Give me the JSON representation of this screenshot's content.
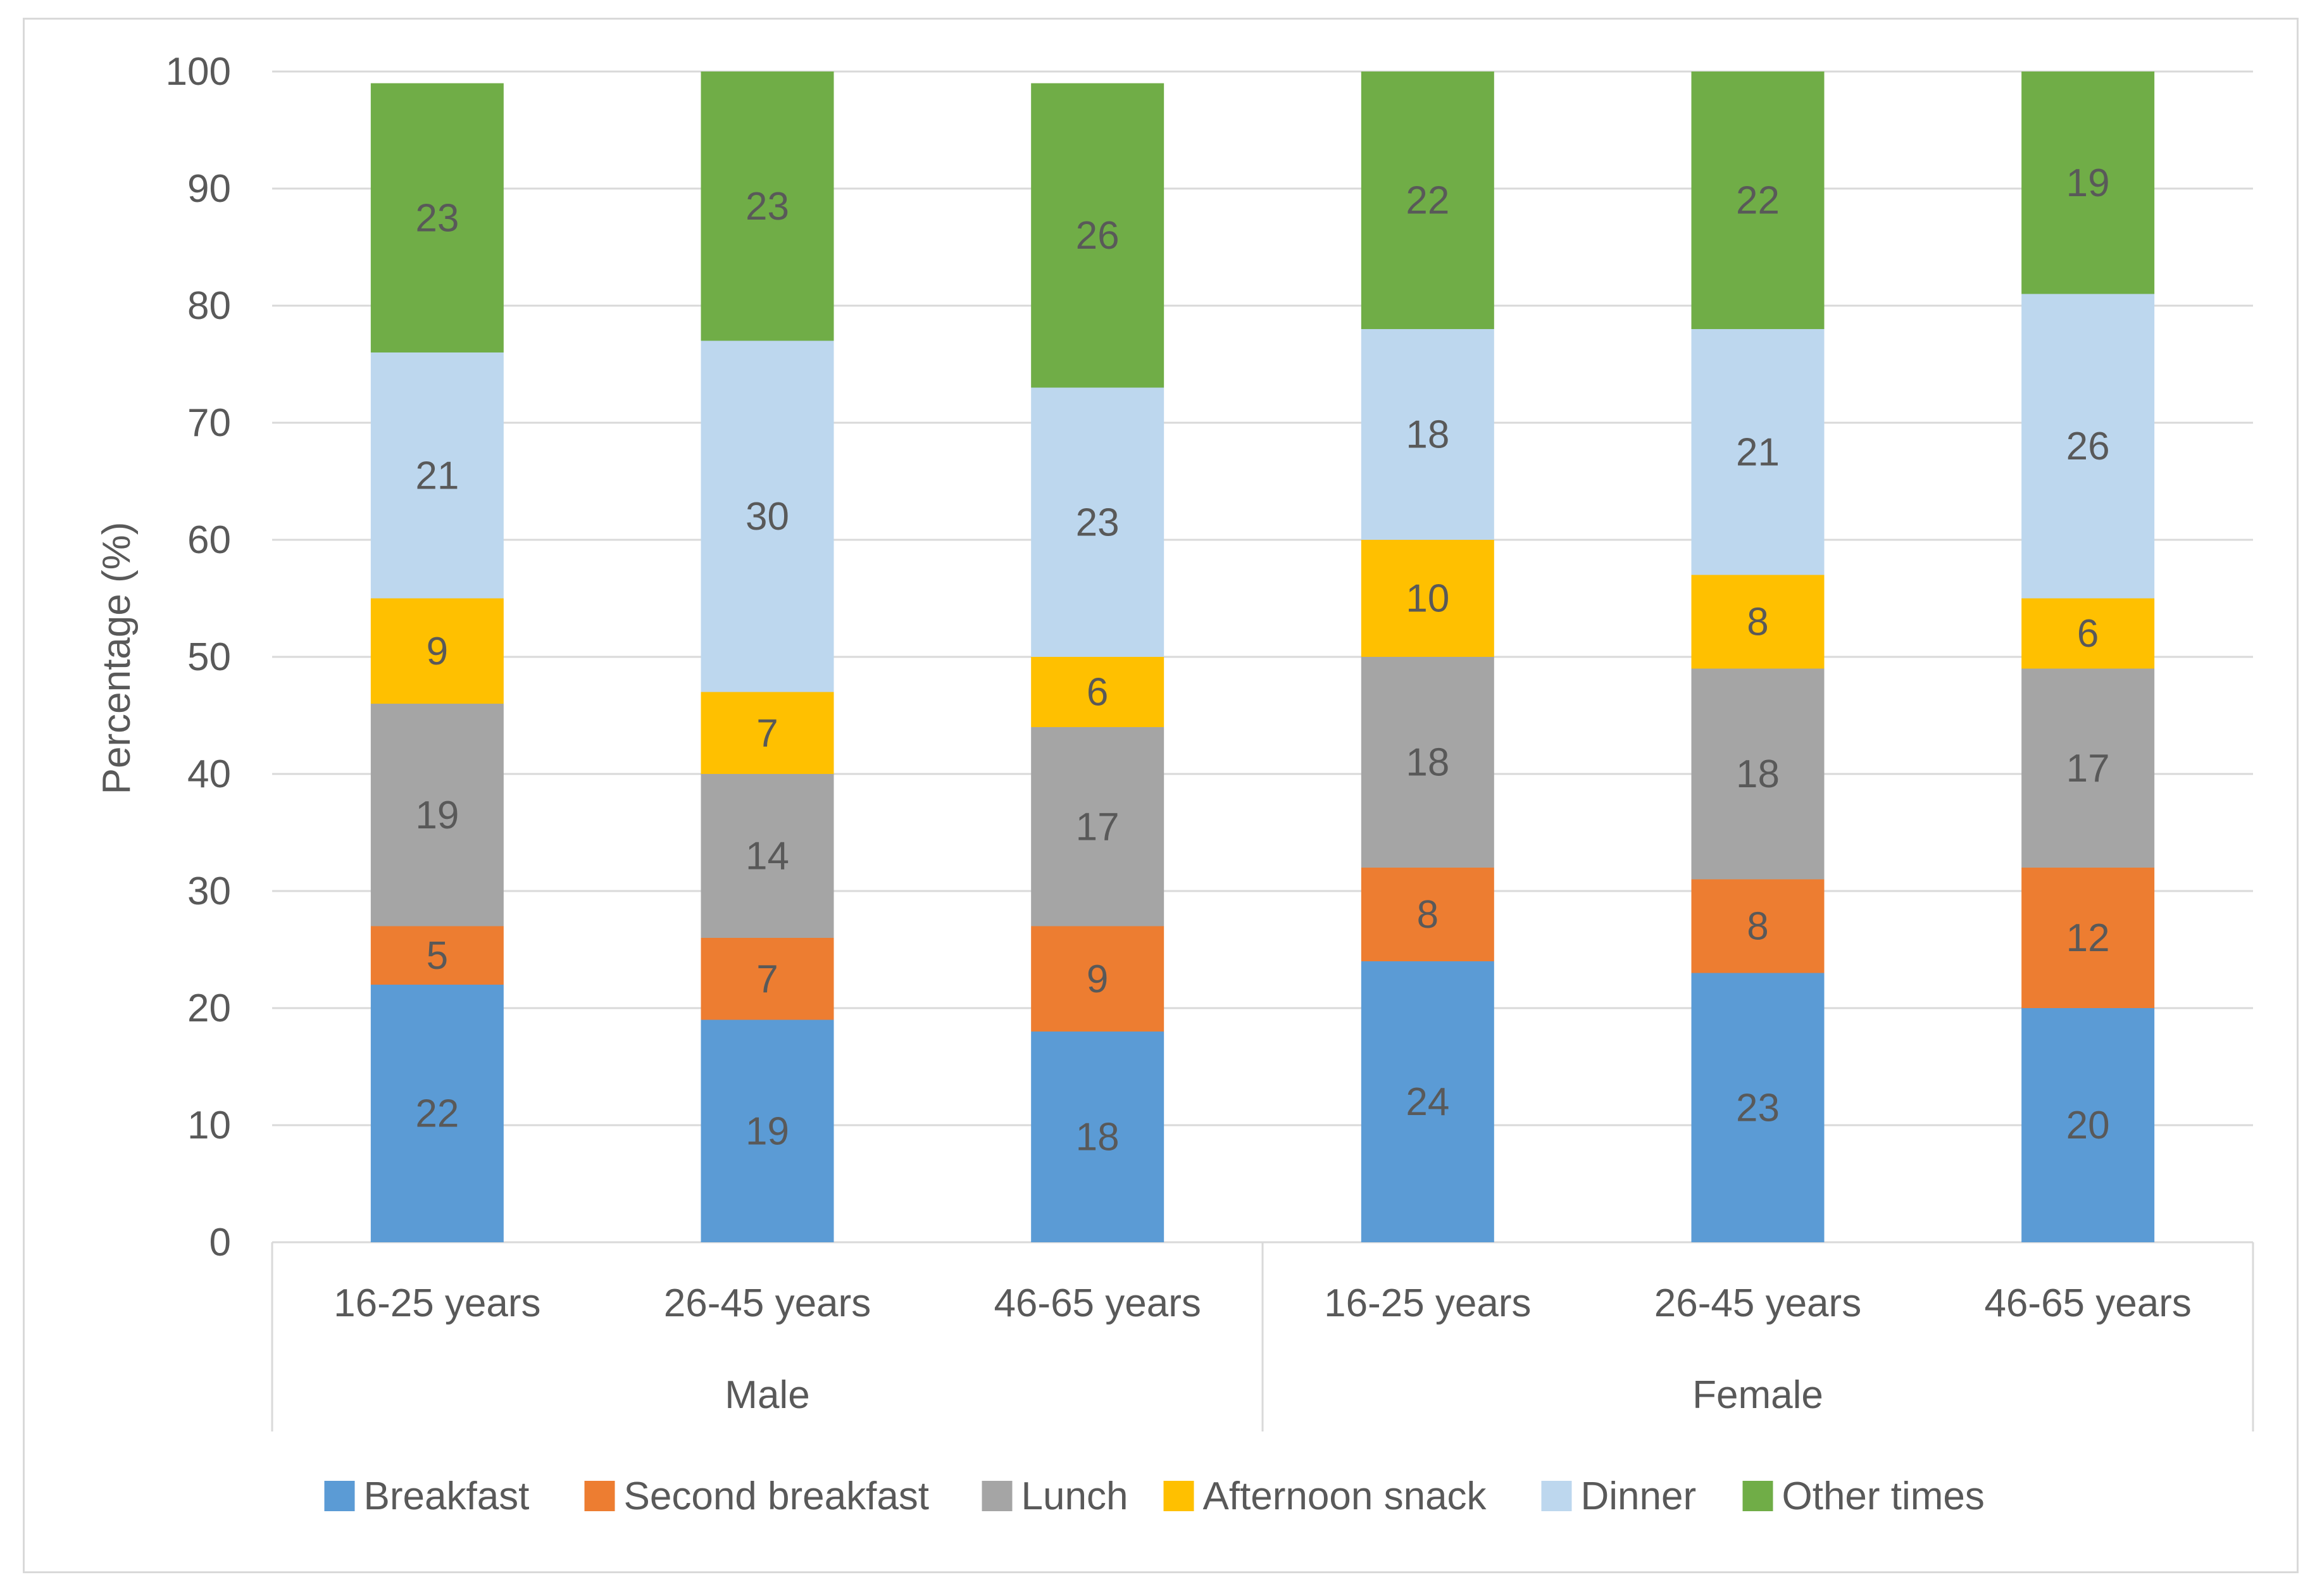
{
  "chart_data": {
    "type": "bar",
    "stacked": true,
    "title": "",
    "xlabel": "",
    "ylabel": "Percentage (%)",
    "ylim": [
      0,
      100
    ],
    "yticks": [
      0,
      10,
      20,
      30,
      40,
      50,
      60,
      70,
      80,
      90,
      100
    ],
    "grid": true,
    "legend_position": "bottom",
    "categories": [
      "16-25 years",
      "26-45 years",
      "46-65 years",
      "16-25 years",
      "26-45 years",
      "46-65 years"
    ],
    "groups": [
      {
        "name": "Male",
        "size": 3
      },
      {
        "name": "Female",
        "size": 3
      }
    ],
    "series": [
      {
        "name": "Breakfast",
        "color": "#5b9bd5",
        "values": [
          22,
          19,
          18,
          24,
          23,
          20
        ]
      },
      {
        "name": "Second breakfast",
        "color": "#ed7d31",
        "values": [
          5,
          7,
          9,
          8,
          8,
          12
        ]
      },
      {
        "name": "Lunch",
        "color": "#a5a5a5",
        "values": [
          19,
          14,
          17,
          18,
          18,
          17
        ]
      },
      {
        "name": "Afternoon snack",
        "color": "#ffc000",
        "values": [
          9,
          7,
          6,
          10,
          8,
          6
        ]
      },
      {
        "name": "Dinner",
        "color": "#bdd7ee",
        "values": [
          21,
          30,
          23,
          18,
          21,
          26
        ]
      },
      {
        "name": "Other times",
        "color": "#70ad47",
        "values": [
          23,
          23,
          26,
          22,
          22,
          19
        ]
      }
    ]
  }
}
